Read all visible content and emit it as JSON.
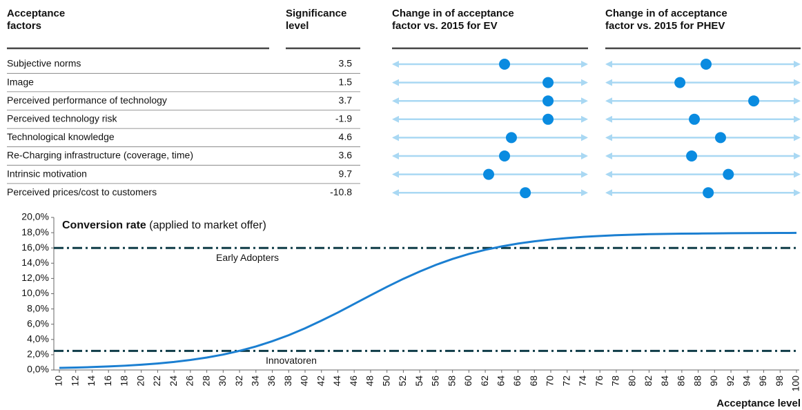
{
  "table": {
    "columns": [
      [
        "Acceptance",
        "factors"
      ],
      [
        "Significance",
        "level"
      ],
      [
        "Change in of acceptance",
        "factor vs. 2015 for EV"
      ],
      [
        "Change in of acceptance",
        "factor vs. 2015 for PHEV"
      ]
    ],
    "xlim": [
      0,
      100
    ],
    "arrow_color": "#a9d8f3",
    "dot_color": "#0a8be0",
    "rows": [
      {
        "factor": "Subjective norms",
        "significance": 3.5,
        "ev": 57.4,
        "phev": 51.6
      },
      {
        "factor": "Image",
        "significance": 1.5,
        "ev": 79.6,
        "phev": 38.2
      },
      {
        "factor": "Perceived performance of technology",
        "significance": 3.7,
        "ev": 79.6,
        "phev": 76
      },
      {
        "factor": "Perceived technology risk",
        "significance": -1.9,
        "ev": 79.6,
        "phev": 45.6
      },
      {
        "factor": "Technological knowledge",
        "significance": 4.6,
        "ev": 60.9,
        "phev": 59
      },
      {
        "factor": "Re-Charging infrastructure (coverage, time)",
        "significance": 3.6,
        "ev": 57.4,
        "phev": 44.2
      },
      {
        "factor": "Intrinsic motivation",
        "significance": 9.7,
        "ev": 49.3,
        "phev": 63
      },
      {
        "factor": "Perceived prices/cost to customers",
        "significance": -10.8,
        "ev": 68,
        "phev": 52.7
      }
    ]
  },
  "chart_data": {
    "type": "line",
    "title": "Conversion rate",
    "subtitle": "(applied to market offer)",
    "x_label": "Acceptance level",
    "x": [
      10,
      12,
      14,
      16,
      18,
      20,
      22,
      24,
      26,
      28,
      30,
      32,
      34,
      36,
      38,
      40,
      42,
      44,
      46,
      48,
      50,
      52,
      54,
      56,
      58,
      60,
      62,
      64,
      66,
      68,
      70,
      72,
      74,
      76,
      78,
      80,
      82,
      84,
      86,
      88,
      90,
      92,
      94,
      96,
      98,
      100
    ],
    "series": [
      {
        "name": "Conversion rate",
        "color": "#1b7fd1",
        "values": [
          0.27,
          0.32,
          0.38,
          0.46,
          0.56,
          0.69,
          0.85,
          1.05,
          1.31,
          1.63,
          2.02,
          2.51,
          3.08,
          3.77,
          4.56,
          5.46,
          6.47,
          7.53,
          8.66,
          9.79,
          10.9,
          11.95,
          12.91,
          13.79,
          14.55,
          15.21,
          15.75,
          16.2,
          16.57,
          16.87,
          17.11,
          17.3,
          17.45,
          17.57,
          17.67,
          17.74,
          17.8,
          17.84,
          17.87,
          17.89,
          17.91,
          17.93,
          17.94,
          17.95,
          17.96,
          17.97
        ]
      }
    ],
    "xlim": [
      10,
      100
    ],
    "xticks": [
      10,
      12,
      14,
      16,
      18,
      20,
      22,
      24,
      26,
      28,
      30,
      32,
      34,
      36,
      38,
      40,
      42,
      44,
      46,
      48,
      50,
      52,
      54,
      56,
      58,
      60,
      62,
      64,
      66,
      68,
      70,
      72,
      74,
      76,
      78,
      80,
      82,
      84,
      86,
      88,
      90,
      92,
      94,
      96,
      98,
      100
    ],
    "ylim": [
      0,
      20
    ],
    "yticks": [
      {
        "value": 0,
        "label": "0,0%"
      },
      {
        "value": 2,
        "label": "2,0%"
      },
      {
        "value": 4,
        "label": "4,0%"
      },
      {
        "value": 6,
        "label": "6,0%"
      },
      {
        "value": 8,
        "label": "8,0%"
      },
      {
        "value": 10,
        "label": "10,0%"
      },
      {
        "value": 12,
        "label": "12,0%"
      },
      {
        "value": 14,
        "label": "14,0%"
      },
      {
        "value": 16,
        "label": "16,0%"
      },
      {
        "value": 18,
        "label": "18,0%"
      },
      {
        "value": 20,
        "label": "20,0%"
      }
    ],
    "reference_lines": [
      {
        "value": 16,
        "label": "Early Adopters",
        "color": "#0e3b47"
      },
      {
        "value": 2.5,
        "label": "Innovatoren",
        "color": "#0e3b47"
      }
    ]
  }
}
